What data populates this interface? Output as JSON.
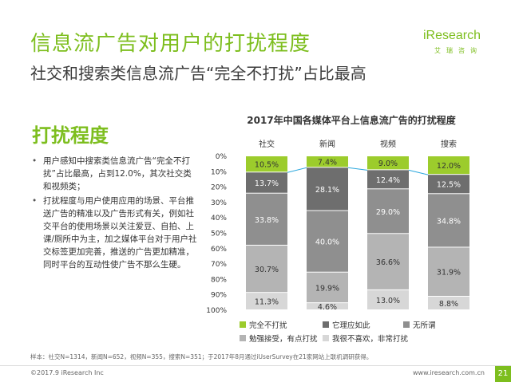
{
  "header": {
    "title": "信息流广告对用户的打扰程度",
    "subtitle": "社交和搜索类信息流广告“完全不打扰”占比最高"
  },
  "logo": {
    "brand": "iResearch",
    "cn": "艾瑞咨询"
  },
  "section": {
    "title": "打扰程度",
    "bullets": [
      "用户感知中搜索类信息流广告“完全不打扰”占比最高，占到12.0%，其次社交类和视频类；",
      "打扰程度与用户使用应用的场景、平台推送广告的精准以及广告形式有关，例如社交平台的使用场景以关注爱豆、自拍、上课/厕所中为主，加之媒体平台对于用户社交标签更加完善，推送的广告更加精准，同时平台的互动性使广告不那么生硬。"
    ]
  },
  "colors": {
    "accent": "#7dbe1e",
    "series": [
      "#9ccc2c",
      "#6e6e6e",
      "#8f8f8f",
      "#b4b4b4",
      "#d7d7d7"
    ],
    "connector": "#2aa7dd"
  },
  "chart_data": {
    "type": "bar",
    "stacked": true,
    "orientation": "vertical",
    "title": "2017年中国各媒体平台上信息流广告的打扰程度",
    "categories": [
      "社交",
      "新闻",
      "视频",
      "搜索"
    ],
    "ylim": [
      0,
      100
    ],
    "yticks": [
      "0%",
      "10%",
      "20%",
      "30%",
      "40%",
      "50%",
      "60%",
      "70%",
      "80%",
      "90%",
      "100%"
    ],
    "series": [
      {
        "name": "完全不打扰",
        "values": [
          10.5,
          7.4,
          9.0,
          12.0
        ],
        "labels": [
          "10.5%",
          "7.4%",
          "9.0%",
          "12.0%"
        ]
      },
      {
        "name": "它理应如此",
        "values": [
          13.7,
          28.1,
          12.4,
          12.5
        ],
        "labels": [
          "13.7%",
          "28.1%",
          "12.4%",
          "12.5%"
        ]
      },
      {
        "name": "无所谓",
        "values": [
          33.8,
          40.0,
          29.0,
          34.8
        ],
        "labels": [
          "33.8%",
          "40.0%",
          "29.0%",
          "34.8%"
        ]
      },
      {
        "name": "勉强接受，有点打扰",
        "values": [
          30.7,
          19.9,
          36.6,
          31.9
        ],
        "labels": [
          "30.7%",
          "19.9%",
          "36.6%",
          "31.9%"
        ]
      },
      {
        "name": "我很不喜欢，非常打扰",
        "values": [
          11.3,
          4.6,
          13.0,
          8.8
        ],
        "labels": [
          "11.3%",
          "4.6%",
          "13.0%",
          "8.8%"
        ]
      }
    ],
    "legend": [
      "完全不打扰",
      "它理应如此",
      "无所谓",
      "勉强接受，有点打扰",
      "我很不喜欢，非常打扰"
    ],
    "legend_position": "bottom"
  },
  "footer": {
    "note": "样本：社交N=1314，新闻N=652，视频N=355，搜索N=351；于2017年8月通过iUserSurvey在21家网站上联机调研获得。",
    "copyright": "©2017.9 iResearch Inc",
    "website": "www.iresearch.com.cn",
    "page": "21"
  }
}
